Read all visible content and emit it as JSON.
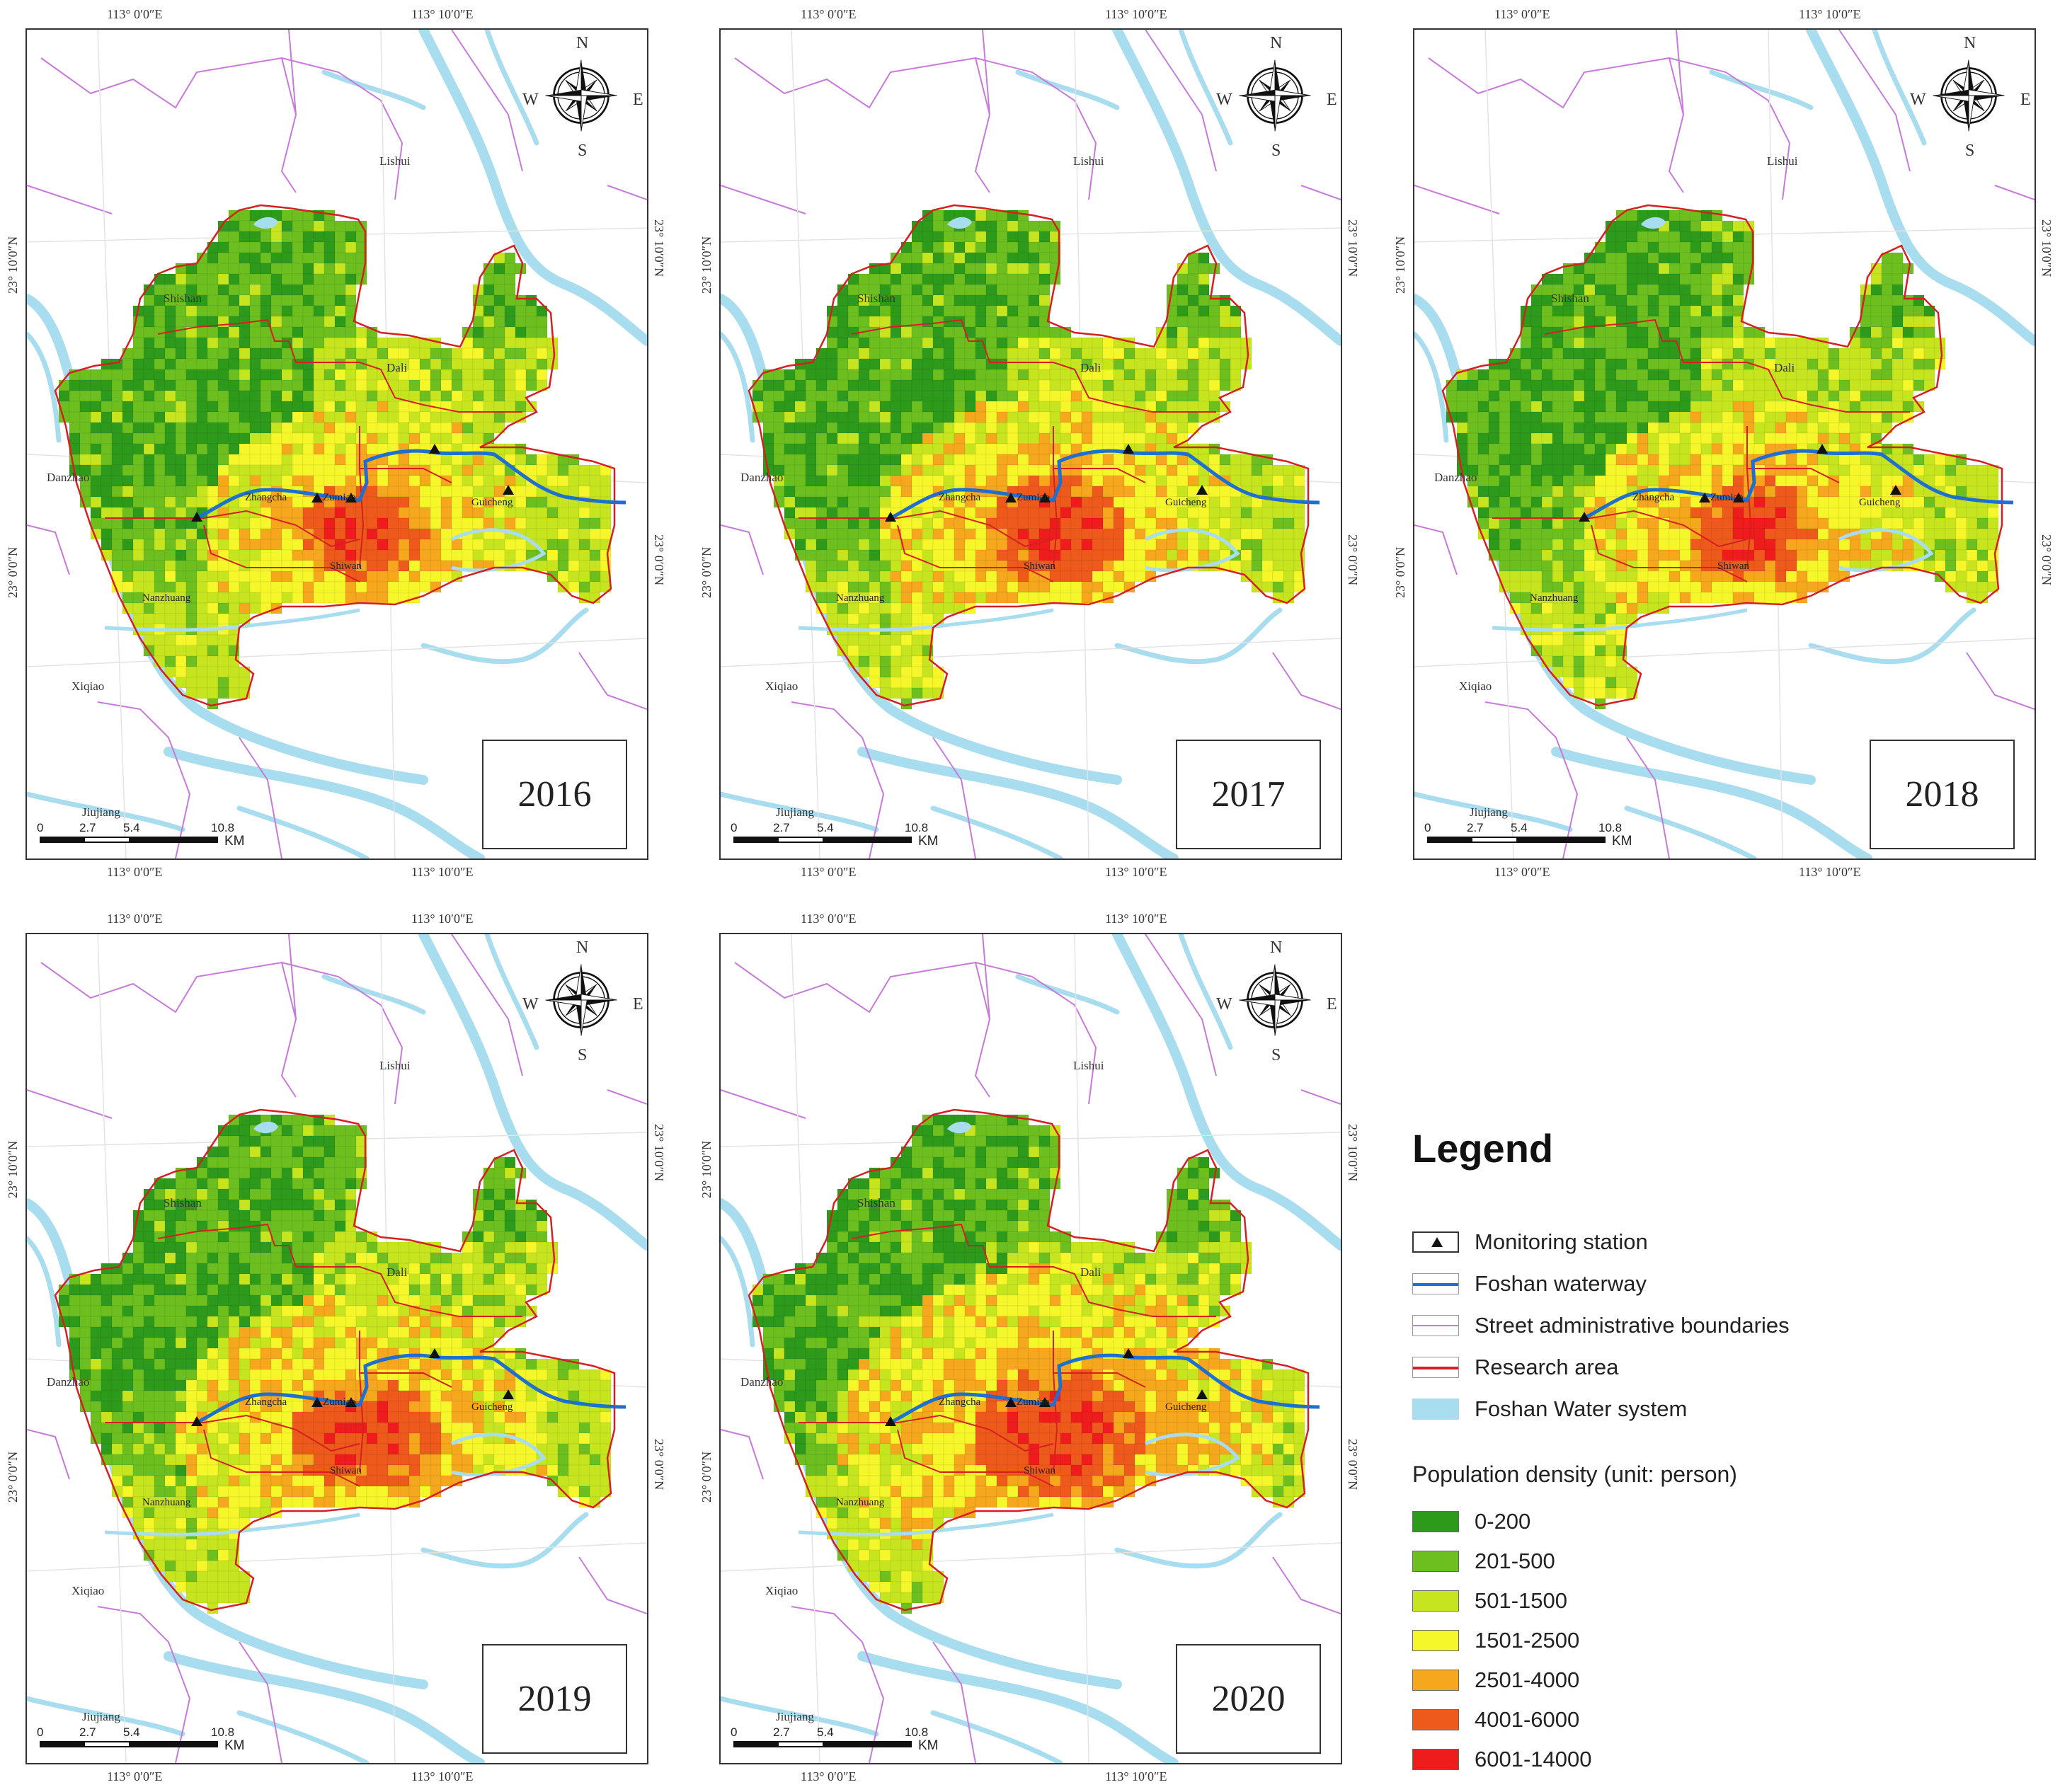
{
  "coords": {
    "lon1": "113° 0′0″E",
    "lon2": "113° 10′0″E",
    "lat1": "23° 10′0″N",
    "lat2": "23° 0′0″N"
  },
  "compass": {
    "n": "N",
    "s": "S",
    "e": "E",
    "w": "W"
  },
  "scale": {
    "t0": "0",
    "t1": "2.7",
    "t2": "5.4",
    "t3": "10.8",
    "unit": "KM"
  },
  "towns": {
    "lishui": "Lishui",
    "shishan": "Shishan",
    "dali": "Dali",
    "danzhao": "Danzhao",
    "zhangcha": "Zhangcha",
    "zumiao": "Zumiao",
    "guicheng": "Guicheng",
    "shiwan": "Shiwan",
    "nanzhuang": "Nanzhuang",
    "xiqiao": "Xiqiao",
    "jiujiang": "Jiujiang"
  },
  "panels": [
    {
      "year": "2016",
      "core_intensity": 1.0
    },
    {
      "year": "2017",
      "core_intensity": 1.1
    },
    {
      "year": "2018",
      "core_intensity": 1.05
    },
    {
      "year": "2019",
      "core_intensity": 1.15
    },
    {
      "year": "2020",
      "core_intensity": 1.35
    }
  ],
  "legend": {
    "title": "Legend",
    "items": [
      {
        "label": "Monitoring station",
        "kind": "station"
      },
      {
        "label": "Foshan waterway",
        "kind": "waterway",
        "color": "#1f6fd1"
      },
      {
        "label": "Street administrative boundaries",
        "kind": "boundary",
        "color": "#c77ad9"
      },
      {
        "label": "Research area",
        "kind": "research",
        "color": "#d62020"
      },
      {
        "label": "Foshan Water system",
        "kind": "water",
        "color": "#a8dcef"
      }
    ],
    "density_title": "Population density (unit: person)",
    "classes": [
      {
        "label": "0-200",
        "color": "#2e9a1c"
      },
      {
        "label": "201-500",
        "color": "#6cbf1f"
      },
      {
        "label": "501-1500",
        "color": "#c6e51f"
      },
      {
        "label": "1501-2500",
        "color": "#f6f72a"
      },
      {
        "label": "2501-4000",
        "color": "#f5a71d"
      },
      {
        "label": "4001-6000",
        "color": "#ee5a1c"
      },
      {
        "label": "6001-14000",
        "color": "#ee1c1c"
      }
    ]
  }
}
